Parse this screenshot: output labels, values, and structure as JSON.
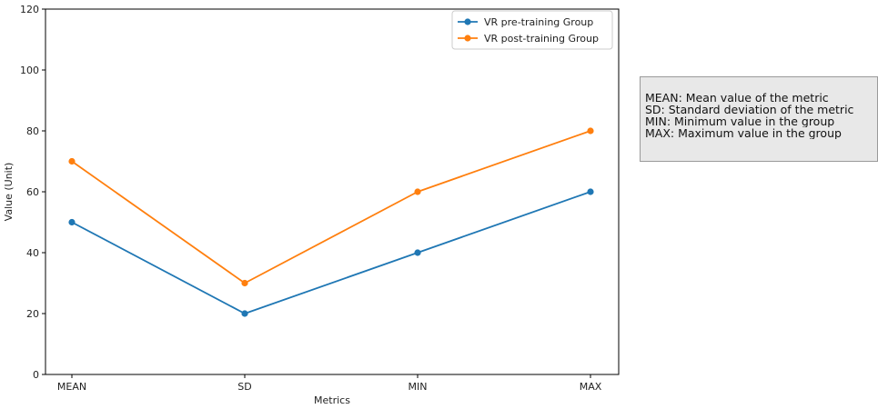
{
  "chart_data": {
    "type": "line",
    "categories": [
      "MEAN",
      "SD",
      "MIN",
      "MAX"
    ],
    "series": [
      {
        "name": "VR pre-training Group",
        "values": [
          50,
          20,
          40,
          60
        ],
        "color": "#1f77b4"
      },
      {
        "name": "VR post-training Group",
        "values": [
          70,
          30,
          60,
          80
        ],
        "color": "#ff7f0e"
      }
    ],
    "xlabel": "Metrics",
    "ylabel": "Value (Unit)",
    "ylim": [
      0,
      120
    ],
    "yticks": [
      0,
      20,
      40,
      60,
      80,
      100,
      120
    ],
    "grid": false,
    "legend_position": "top-right"
  },
  "annotation": {
    "lines": [
      "MEAN: Mean value of the metric",
      "SD: Standard deviation of the metric",
      "MIN: Minimum value in the group",
      "MAX: Maximum value in the group"
    ]
  }
}
